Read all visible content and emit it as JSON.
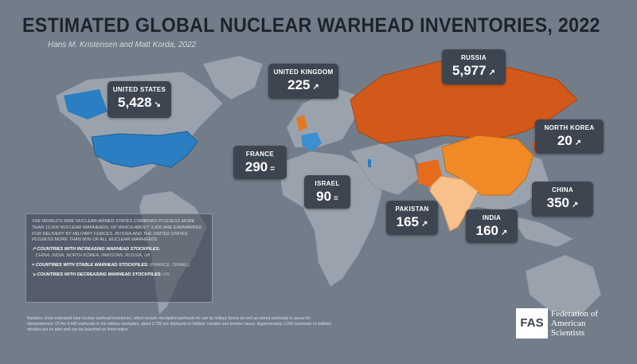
{
  "header": {
    "title": "ESTIMATED GLOBAL NUCLEAR WARHEAD INVENTORIES, 2022",
    "subtitle": "Hans M. Kristensen and Matt Korda, 2022"
  },
  "callouts": [
    {
      "country": "UNITED STATES",
      "warheads": {
        "value": 5428,
        "label": "5,428"
      }
    },
    {
      "country": "UNITED KINGDOM",
      "warheads": 225
    },
    {
      "country": "RUSSIA",
      "warheads": {
        "value": 5977,
        "label": "5,977"
      }
    },
    {
      "country": "NORTH KOREA",
      "warheads": 20
    },
    {
      "country": "FRANCE",
      "warheads": 290
    },
    {
      "country": "ISRAEL",
      "warheads": 90
    },
    {
      "country": "PAKISTAN",
      "warheads": 165
    },
    {
      "country": "INDIA",
      "warheads": 160
    },
    {
      "country": "CHINA",
      "warheads": 350
    }
  ],
  "legend": {
    "summary": "THE WORLD'S NINE NUCLEAR-ARMED STATES COMBINED POSSESS MORE THAN 12,500 NUCLEAR WARHEADS, OF WHICH ABOUT 9,500 ARE EARMARKED FOR DELIVERY BY MILITARY FORCES. RUSSIA AND THE UNITED STATES POSSESS MORE THAN 90% OF ALL NUCLEAR WARHEADS.",
    "items": [
      {
        "label": "COUNTRIES WITH INCREASING WARHEAD STOCKPILES:",
        "countries": "CHINA, INDIA, NORTH KOREA, PAKISTAN, RUSSIA, UK"
      },
      {
        "label": "COUNTRIES WITH STABLE WARHEAD STOCKPILES:",
        "countries": "(FRANCE, ISRAEL)"
      },
      {
        "label": "COUNTRIES WITH DECREASING WARHEAD STOCKPILES:",
        "countries": "US"
      }
    ]
  },
  "footnote": "Numbers show estimated total nuclear warhead inventories, which include stockpiled warheads for use by military forces as well as retired warheads in queue for dismantlement. Of the 9,440 warheads in the military stockpiles, about 3,730 are deployed on ballistic missiles and bomber bases. Approximately 2,000 warheads on ballistic missiles are on alert and can be launched on short notice.",
  "logo": {
    "mark": "FAS",
    "name": "Federation of American Scientists"
  }
}
